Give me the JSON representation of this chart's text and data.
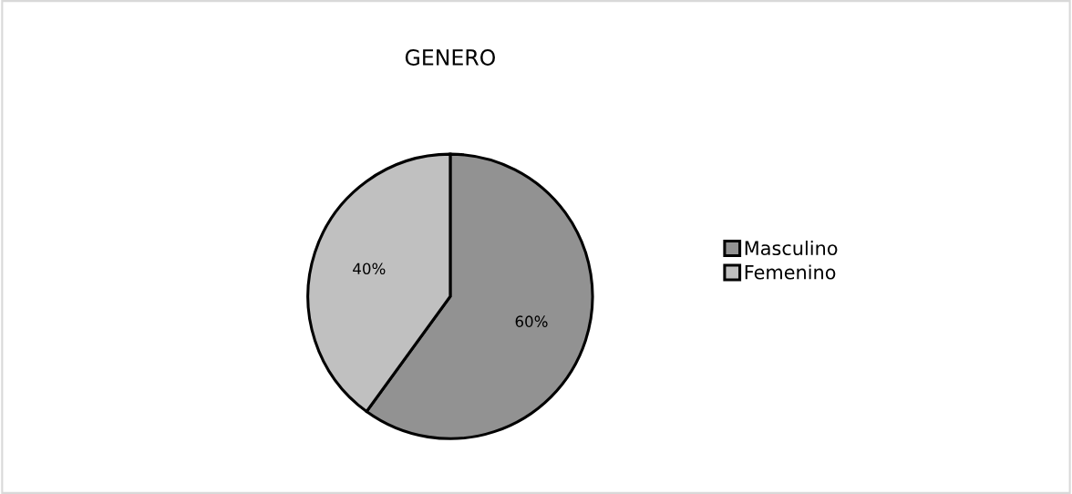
{
  "chart_data": {
    "type": "pie",
    "title": "GENERO",
    "categories": [
      "Masculino",
      "Femenino"
    ],
    "values": [
      60,
      40
    ],
    "colors": [
      "#929292",
      "#c0c0c0"
    ],
    "value_labels": [
      "60%",
      "40%"
    ],
    "legend": "right"
  }
}
